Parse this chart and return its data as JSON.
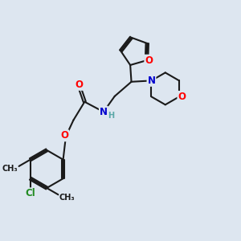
{
  "bg_color": "#dde6f0",
  "bond_color": "#1a1a1a",
  "bond_width": 1.5,
  "atom_colors": {
    "O": "#ff0000",
    "N": "#0000cd",
    "Cl": "#228B22",
    "C": "#1a1a1a",
    "H": "#5ba8a8"
  },
  "font_size_atom": 8.5,
  "font_size_small": 7.0
}
